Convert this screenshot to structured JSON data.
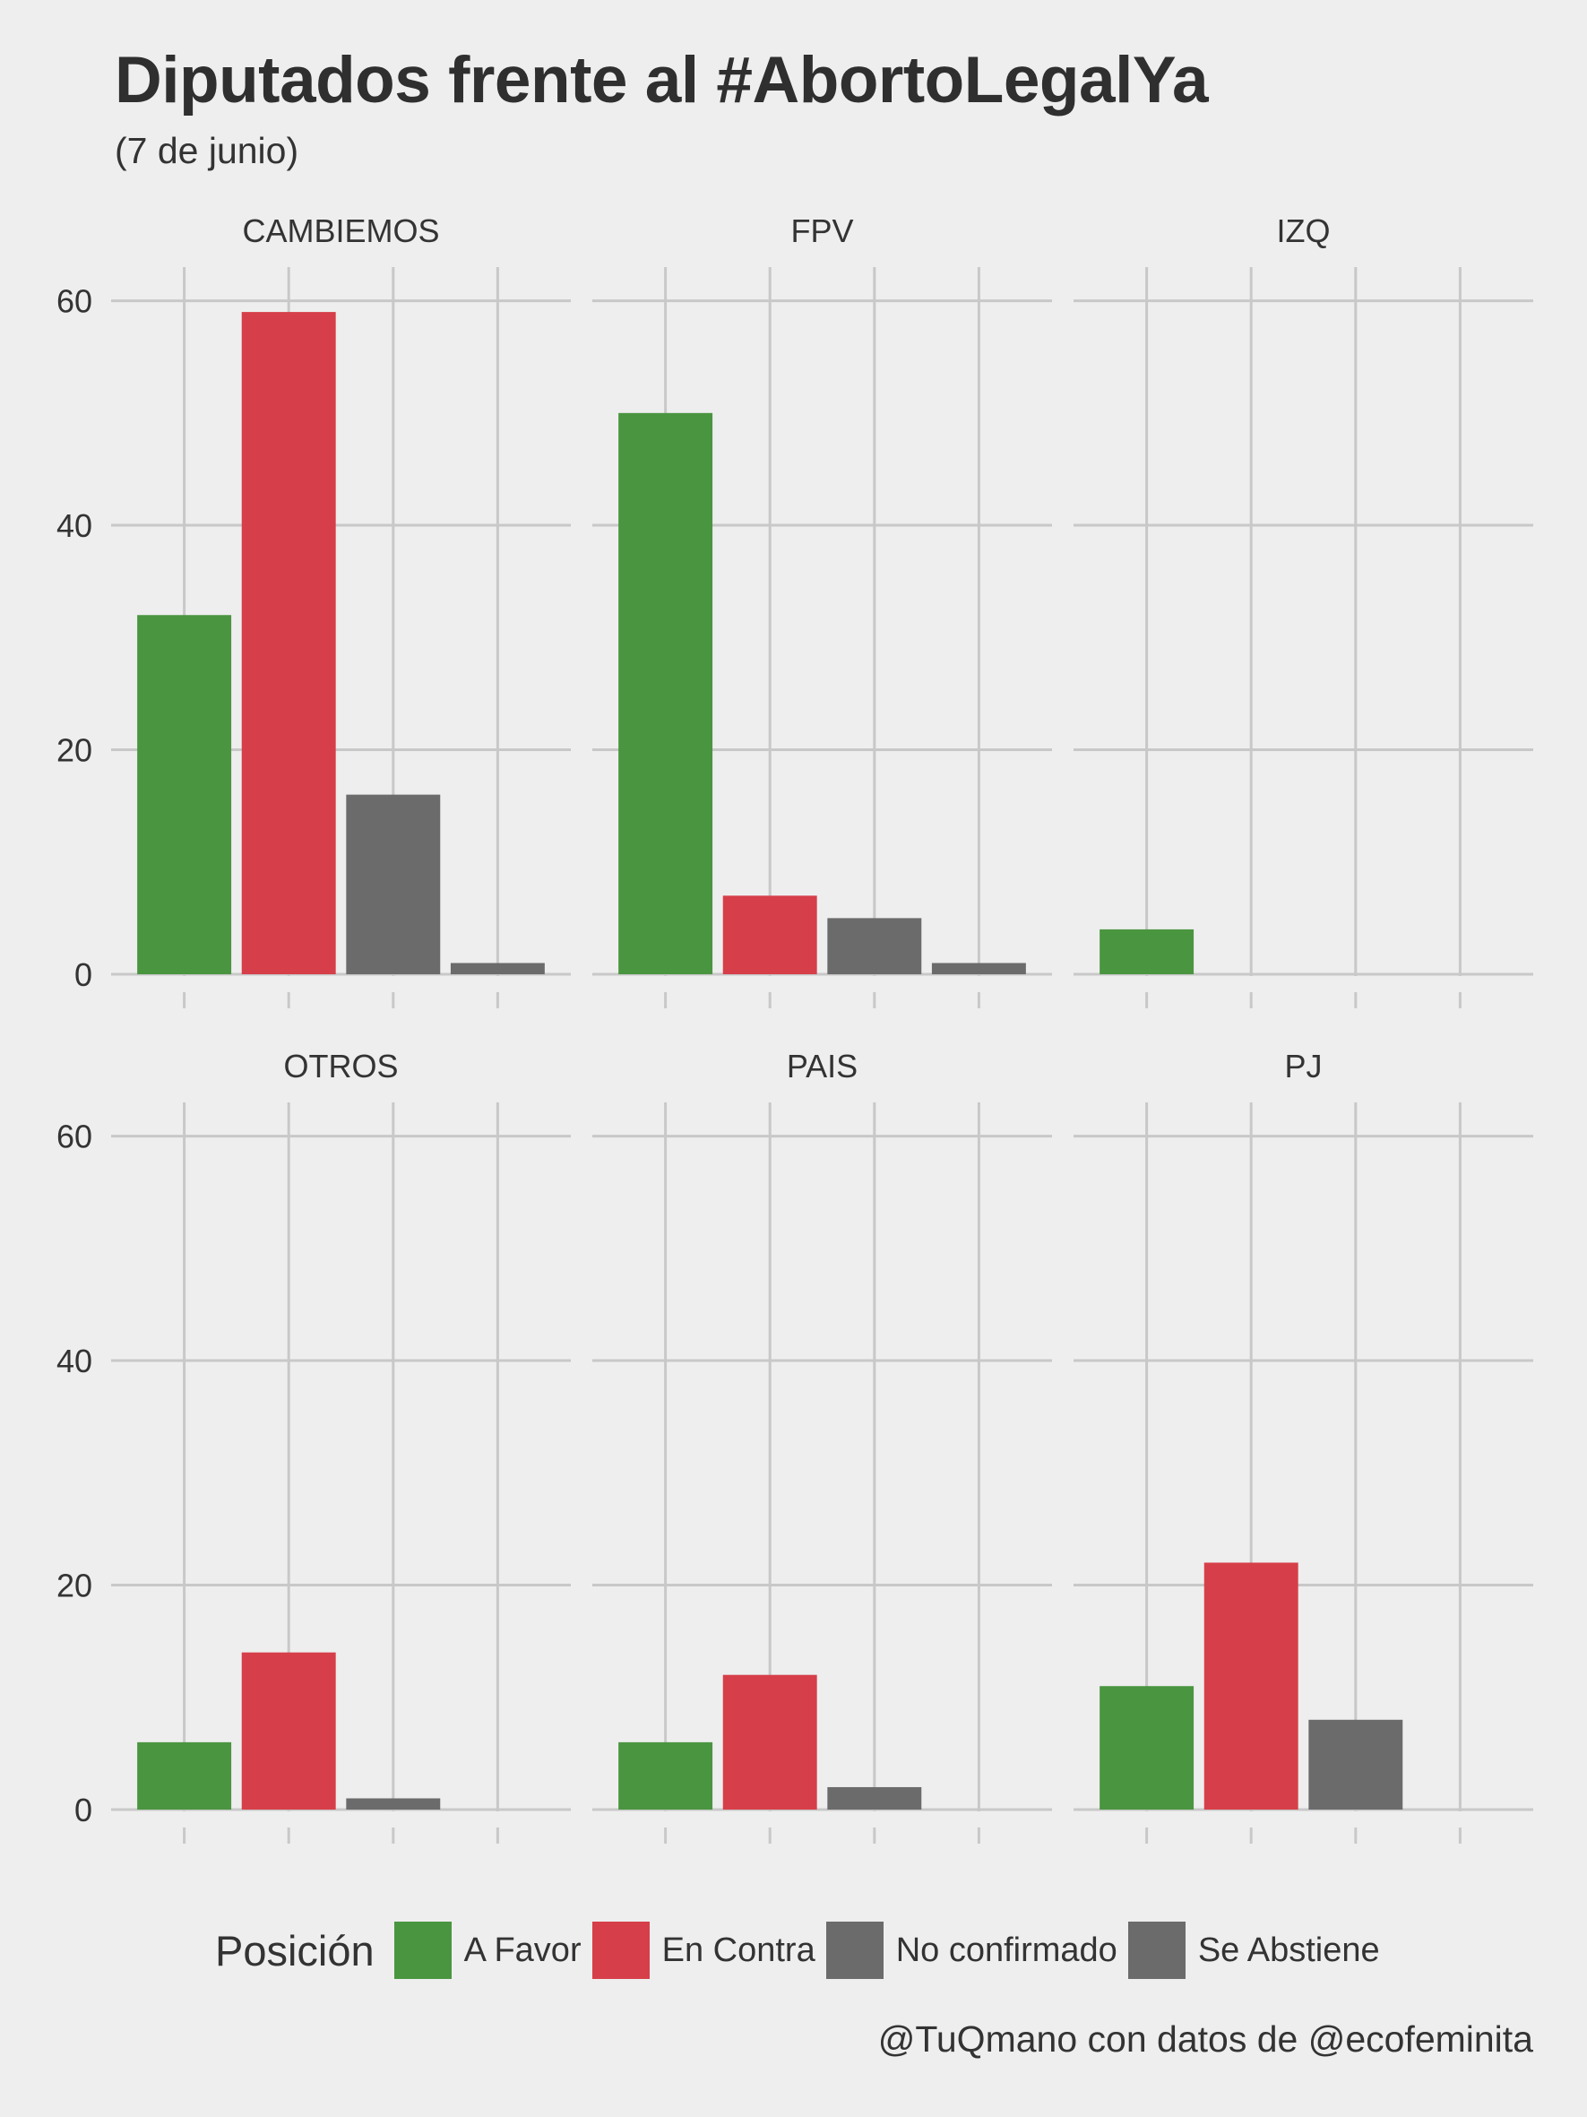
{
  "chart_data": {
    "type": "bar",
    "title": "Diputados frente al #AbortoLegalYa",
    "subtitle": "(7 de junio)",
    "caption": "@TuQmano con datos de @ecofeminita",
    "xlabel": "",
    "ylabel": "",
    "ylim": [
      0,
      63
    ],
    "y_ticks": [
      0,
      20,
      40,
      60
    ],
    "grid": true,
    "legend": {
      "title": "Posición",
      "placement": "bottom",
      "items": [
        {
          "label": "A Favor",
          "color": "#4a9540"
        },
        {
          "label": "En Contra",
          "color": "#d63f49"
        },
        {
          "label": "No confirmado",
          "color": "#6b6b6b"
        },
        {
          "label": "Se Abstiene",
          "color": "#6b6b6b"
        }
      ]
    },
    "categories": [
      "A Favor",
      "En Contra",
      "No confirmado",
      "Se Abstiene"
    ],
    "panels": [
      {
        "name": "CAMBIEMOS",
        "values": [
          32,
          59,
          16,
          1
        ]
      },
      {
        "name": "FPV",
        "values": [
          50,
          7,
          5,
          1
        ]
      },
      {
        "name": "IZQ",
        "values": [
          4,
          0,
          0,
          0
        ]
      },
      {
        "name": "OTROS",
        "values": [
          6,
          14,
          1,
          0
        ]
      },
      {
        "name": "PAIS",
        "values": [
          6,
          12,
          2,
          0
        ]
      },
      {
        "name": "PJ",
        "values": [
          11,
          22,
          8,
          0
        ]
      }
    ]
  }
}
